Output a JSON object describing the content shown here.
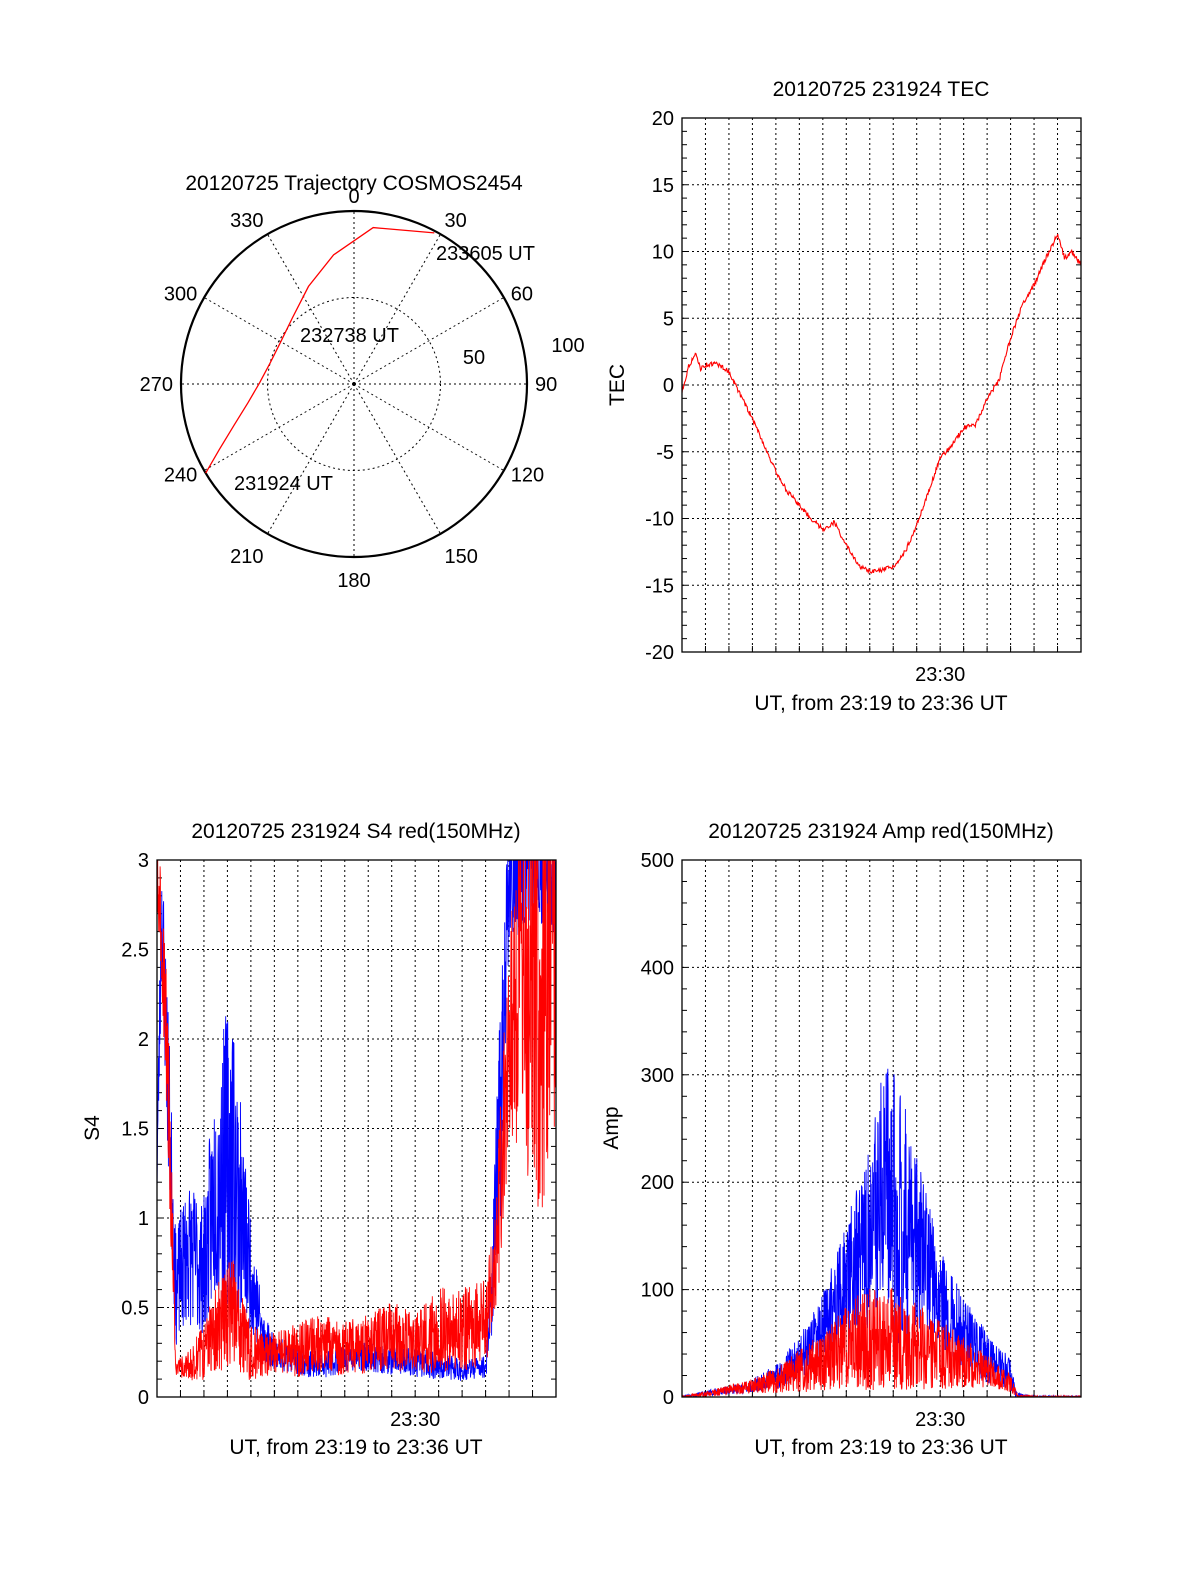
{
  "chart_data": [
    {
      "type": "polar",
      "title": "20120725 Trajectory COSMOS2454",
      "angle_labels": [
        "0",
        "30",
        "60",
        "90",
        "120",
        "150",
        "180",
        "210",
        "240",
        "270",
        "300",
        "330"
      ],
      "radial_labels": [
        "50",
        "100"
      ],
      "grid": true,
      "trajectory": {
        "color": "#ff0000",
        "points": [
          {
            "az": 239,
            "zen": 90
          },
          {
            "az": 244,
            "zen": 78
          },
          {
            "az": 251,
            "zen": 66
          },
          {
            "az": 260,
            "zen": 56
          },
          {
            "az": 271,
            "zen": 49
          },
          {
            "az": 284,
            "zen": 45
          },
          {
            "az": 300,
            "zen": 44
          },
          {
            "az": 317,
            "zen": 47
          },
          {
            "az": 335,
            "zen": 56
          },
          {
            "az": 351,
            "zen": 68
          },
          {
            "az": 7,
            "zen": 82
          },
          {
            "az": 28,
            "zen": 89
          }
        ]
      },
      "annotations": [
        {
          "text": "231924 UT",
          "az": 239,
          "zen": 90
        },
        {
          "text": "232738 UT",
          "az": 296,
          "zen": 44
        },
        {
          "text": "233605 UT",
          "az": 28,
          "zen": 89
        }
      ]
    },
    {
      "type": "line",
      "title": "20120725 231924 TEC",
      "xlabel": "UT, from 23:19 to 23:36 UT",
      "ylabel": "TEC",
      "xlim": [
        0,
        17
      ],
      "ylim": [
        -20,
        20
      ],
      "yticks": [
        -20,
        -15,
        -10,
        -5,
        0,
        5,
        10,
        15,
        20
      ],
      "xtick_labels": [
        {
          "x": 11,
          "label": "23:30"
        }
      ],
      "grid": true,
      "series": [
        {
          "color": "#ff0000",
          "x": [
            0,
            0.3,
            0.6,
            0.8,
            1.0,
            1.5,
            2.0,
            2.5,
            3.0,
            3.5,
            4.0,
            4.5,
            5.0,
            5.5,
            6.0,
            6.5,
            6.7,
            7.0,
            7.5,
            8.0,
            8.5,
            9.0,
            9.5,
            10.0,
            10.5,
            11.0,
            11.5,
            12.0,
            12.5,
            13.0,
            13.5,
            14.0,
            14.5,
            15.0,
            15.5,
            16.0,
            16.3,
            16.6,
            17.0
          ],
          "y": [
            -0.5,
            1.5,
            2.3,
            1.2,
            1.5,
            1.6,
            1.0,
            -0.8,
            -2.5,
            -4.5,
            -6.5,
            -8.0,
            -9.0,
            -10.0,
            -10.8,
            -10.3,
            -11.0,
            -12.0,
            -13.5,
            -14.0,
            -13.9,
            -13.6,
            -12.5,
            -10.5,
            -8.0,
            -5.5,
            -4.5,
            -3.2,
            -3.0,
            -1.0,
            0.3,
            3.5,
            6.0,
            7.5,
            9.5,
            11.3,
            9.5,
            10.0,
            9.0
          ]
        }
      ]
    },
    {
      "type": "line",
      "title": "20120725 231924 S4 red(150MHz)",
      "xlabel": "UT, from 23:19 to 23:36 UT",
      "ylabel": "S4",
      "xlim": [
        0,
        17
      ],
      "ylim": [
        0,
        3
      ],
      "yticks": [
        0,
        0.5,
        1,
        1.5,
        2,
        2.5,
        3
      ],
      "xtick_labels": [
        {
          "x": 11,
          "label": "23:30"
        }
      ],
      "grid": true,
      "series": [
        {
          "color": "#0000ff",
          "x": [
            0,
            0.2,
            0.5,
            0.8,
            1.3,
            2.0,
            2.5,
            3.2,
            3.5,
            4.0,
            4.5,
            5.0,
            6.0,
            7.0,
            8.0,
            9.0,
            10.0,
            11.0,
            12.0,
            13.0,
            14.0,
            14.2,
            14.6,
            15.0,
            16.0,
            17.0
          ],
          "y": [
            1.2,
            2.6,
            1.5,
            0.5,
            0.7,
            0.6,
            1.0,
            1.1,
            0.9,
            0.6,
            0.3,
            0.22,
            0.18,
            0.15,
            0.2,
            0.2,
            0.18,
            0.17,
            0.15,
            0.13,
            0.15,
            0.4,
            1.3,
            2.8,
            2.9,
            2.8
          ],
          "noise": [
            0.3,
            0.5,
            0.6,
            0.4,
            0.5,
            0.5,
            0.8,
            1.2,
            0.8,
            0.4,
            0.2,
            0.12,
            0.1,
            0.1,
            0.1,
            0.1,
            0.1,
            0.1,
            0.1,
            0.08,
            0.08,
            0.3,
            0.8,
            0.5,
            0.4,
            0.4
          ]
        },
        {
          "color": "#ff0000",
          "x": [
            0,
            0.2,
            0.5,
            0.8,
            1.3,
            2.0,
            2.5,
            3.2,
            3.5,
            4.0,
            5.0,
            6.0,
            7.0,
            8.0,
            9.0,
            10.0,
            11.0,
            12.0,
            13.0,
            14.0,
            14.3,
            14.6,
            15.0,
            15.5,
            16.0,
            16.5,
            17.0
          ],
          "y": [
            2.9,
            2.5,
            1.5,
            0.15,
            0.15,
            0.2,
            0.3,
            0.4,
            0.3,
            0.2,
            0.2,
            0.22,
            0.25,
            0.22,
            0.25,
            0.28,
            0.25,
            0.3,
            0.3,
            0.35,
            0.5,
            1.0,
            1.8,
            2.1,
            1.8,
            2.0,
            2.2
          ],
          "noise": [
            0.3,
            0.4,
            0.6,
            0.05,
            0.1,
            0.2,
            0.3,
            0.4,
            0.3,
            0.2,
            0.15,
            0.2,
            0.2,
            0.2,
            0.2,
            0.25,
            0.2,
            0.3,
            0.3,
            0.3,
            0.4,
            0.6,
            0.8,
            1.2,
            1.5,
            1.8,
            1.2
          ]
        }
      ]
    },
    {
      "type": "line",
      "title": "20120725 231924 Amp red(150MHz)",
      "xlabel": "UT, from 23:19 to 23:36 UT",
      "ylabel": "Amp",
      "xlim": [
        0,
        17
      ],
      "ylim": [
        0,
        500
      ],
      "yticks": [
        0,
        100,
        200,
        300,
        400,
        500
      ],
      "xtick_labels": [
        {
          "x": 11,
          "label": "23:30"
        }
      ],
      "grid": true,
      "series": [
        {
          "color": "#0000ff",
          "x": [
            0,
            0.5,
            1.0,
            2.0,
            3.0,
            4.0,
            5.0,
            6.0,
            7.0,
            8.0,
            8.5,
            9.0,
            9.5,
            10.0,
            10.5,
            11.0,
            12.0,
            13.0,
            14.0,
            14.2,
            14.5,
            15.0,
            16.0,
            17.0
          ],
          "y": [
            0,
            1,
            3,
            5,
            8,
            15,
            30,
            55,
            90,
            120,
            140,
            140,
            130,
            120,
            100,
            80,
            50,
            30,
            15,
            2,
            1,
            0,
            0,
            0
          ],
          "noise": [
            1,
            2,
            3,
            5,
            8,
            15,
            25,
            40,
            70,
            110,
            150,
            170,
            140,
            100,
            80,
            60,
            40,
            30,
            20,
            5,
            2,
            1,
            1,
            1
          ]
        },
        {
          "color": "#ff0000",
          "x": [
            0,
            1.0,
            2.0,
            3.0,
            4.0,
            5.0,
            6.0,
            7.0,
            8.0,
            9.0,
            10.0,
            11.0,
            12.0,
            13.0,
            14.0,
            14.3,
            15.0,
            17.0
          ],
          "y": [
            0,
            2,
            5,
            8,
            12,
            18,
            25,
            35,
            40,
            40,
            35,
            30,
            25,
            20,
            10,
            0,
            0,
            0
          ],
          "noise": [
            1,
            3,
            6,
            8,
            15,
            25,
            35,
            50,
            60,
            60,
            50,
            40,
            30,
            20,
            10,
            2,
            1,
            1
          ]
        }
      ]
    }
  ]
}
